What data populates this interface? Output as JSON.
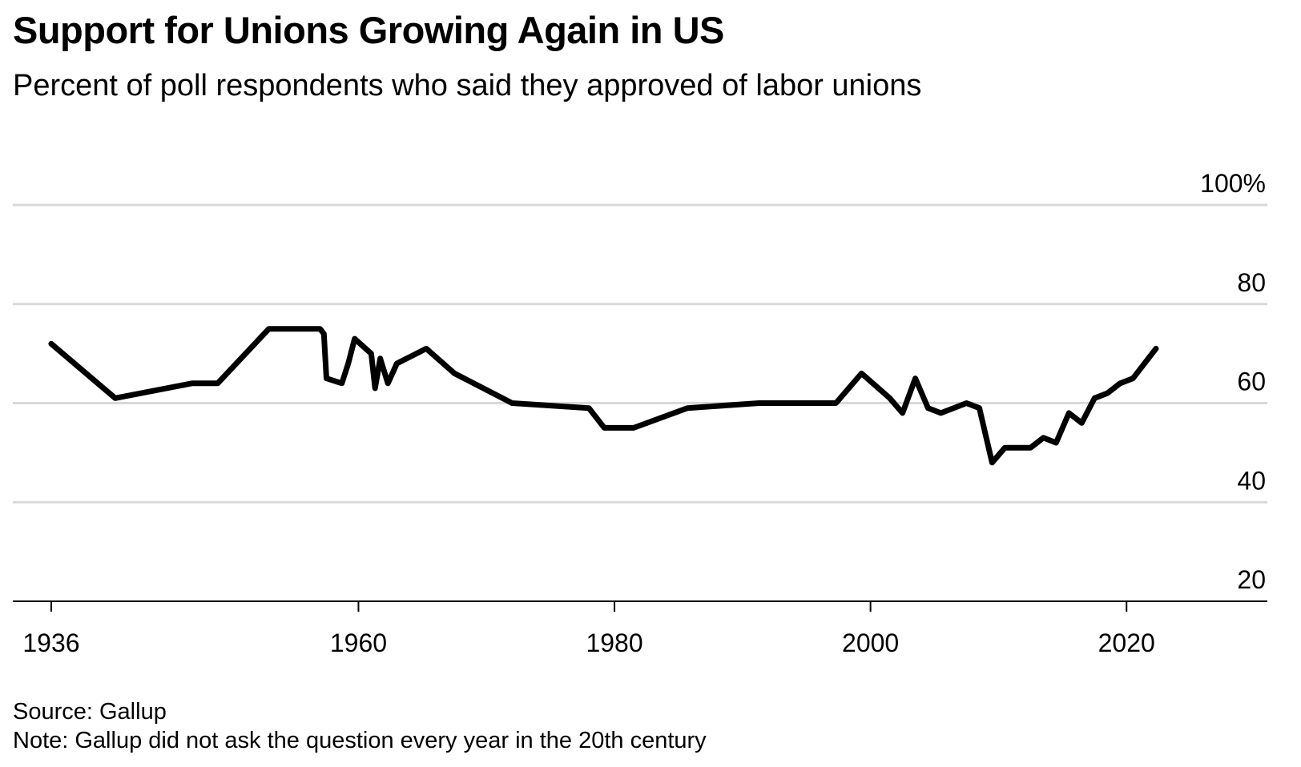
{
  "title": "Support for Unions Growing Again in US",
  "subtitle": "Percent of poll respondents who said they approved of labor unions",
  "source": "Source: Gallup",
  "note": "Note: Gallup did not ask the question every year in the 20th century",
  "chart_data": {
    "type": "line",
    "title": "Support for Unions Growing Again in US",
    "subtitle": "Percent of poll respondents who said they approved of labor unions",
    "xlabel": "",
    "ylabel": "",
    "xlim": [
      1933,
      2031
    ],
    "ylim": [
      20,
      100
    ],
    "x_ticks": [
      1936,
      1960,
      1980,
      2000,
      2020
    ],
    "x_tick_labels": [
      "1936",
      "1960",
      "1980",
      "2000",
      "2020"
    ],
    "y_ticks": [
      20,
      40,
      60,
      80,
      100
    ],
    "y_tick_labels": [
      "20",
      "40",
      "60",
      "80",
      "100%"
    ],
    "grid": true,
    "line_color": "#000000",
    "series": [
      {
        "values": [
          [
            1936,
            72
          ],
          [
            1941,
            61
          ],
          [
            1947,
            64
          ],
          [
            1949,
            64
          ],
          [
            1953,
            75
          ],
          [
            1957,
            75
          ],
          [
            1957.3,
            74
          ],
          [
            1957.5,
            65
          ],
          [
            1958.7,
            64
          ],
          [
            1959.2,
            68
          ],
          [
            1959.7,
            73
          ],
          [
            1961,
            70
          ],
          [
            1961.3,
            63
          ],
          [
            1961.7,
            69
          ],
          [
            1962.3,
            64
          ],
          [
            1963,
            68
          ],
          [
            1965.3,
            71
          ],
          [
            1967.5,
            66
          ],
          [
            1972,
            60
          ],
          [
            1978,
            59
          ],
          [
            1979.2,
            55
          ],
          [
            1981.5,
            55
          ],
          [
            1985.7,
            59
          ],
          [
            1991.3,
            60
          ],
          [
            1997.3,
            60
          ],
          [
            1999.3,
            66
          ],
          [
            2001.5,
            61
          ],
          [
            2002.5,
            58
          ],
          [
            2003.5,
            65
          ],
          [
            2004.5,
            59
          ],
          [
            2005.5,
            58
          ],
          [
            2007.5,
            60
          ],
          [
            2008.5,
            59
          ],
          [
            2009.5,
            48
          ],
          [
            2010.5,
            51
          ],
          [
            2012.5,
            51
          ],
          [
            2013.5,
            53
          ],
          [
            2014.5,
            52
          ],
          [
            2015.5,
            58
          ],
          [
            2016.5,
            56
          ],
          [
            2017.5,
            61
          ],
          [
            2018.5,
            62
          ],
          [
            2019.5,
            64
          ],
          [
            2020.5,
            65
          ],
          [
            2022.3,
            71
          ]
        ]
      }
    ]
  }
}
